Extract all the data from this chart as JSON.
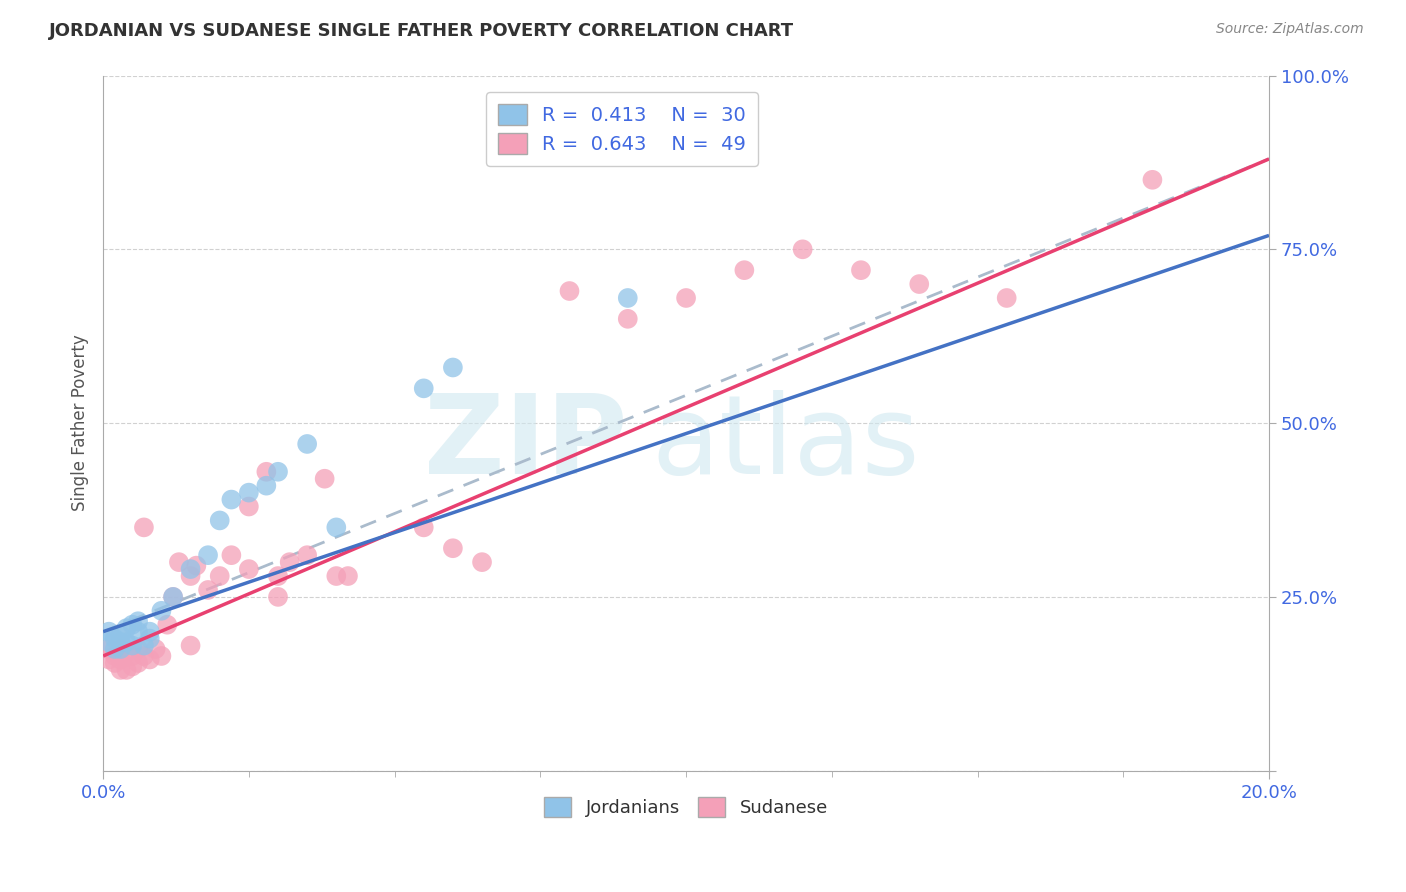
{
  "title": "JORDANIAN VS SUDANESE SINGLE FATHER POVERTY CORRELATION CHART",
  "source_text": "Source: ZipAtlas.com",
  "ylabel": "Single Father Poverty",
  "x_min": 0.0,
  "x_max": 0.2,
  "y_min": 0.0,
  "y_max": 1.0,
  "y_ticks": [
    0.0,
    0.25,
    0.5,
    0.75,
    1.0
  ],
  "y_tick_labels": [
    "",
    "25.0%",
    "50.0%",
    "75.0%",
    "100.0%"
  ],
  "legend_r1": "0.413",
  "legend_n1": "30",
  "legend_r2": "0.643",
  "legend_n2": "49",
  "jordanian_color": "#90C3E8",
  "sudanese_color": "#F4A0B8",
  "jordanian_line_color": "#4472C4",
  "sudanese_line_color": "#E84070",
  "dash_line_color": "#AABBCC",
  "background_color": "#FFFFFF",
  "grid_color": "#CCCCCC",
  "axis_label_color": "#4169E1",
  "title_color": "#333333",
  "source_color": "#888888",
  "watermark_color": "#D0E8F0",
  "jordanians_x": [
    0.001,
    0.001,
    0.002,
    0.002,
    0.003,
    0.003,
    0.003,
    0.004,
    0.004,
    0.005,
    0.005,
    0.006,
    0.006,
    0.007,
    0.008,
    0.008,
    0.01,
    0.012,
    0.015,
    0.018,
    0.02,
    0.022,
    0.025,
    0.028,
    0.03,
    0.035,
    0.04,
    0.055,
    0.06,
    0.09
  ],
  "jordanians_y": [
    0.185,
    0.2,
    0.175,
    0.19,
    0.175,
    0.185,
    0.195,
    0.185,
    0.205,
    0.21,
    0.18,
    0.2,
    0.215,
    0.18,
    0.19,
    0.2,
    0.23,
    0.25,
    0.29,
    0.31,
    0.36,
    0.39,
    0.4,
    0.41,
    0.43,
    0.47,
    0.35,
    0.55,
    0.58,
    0.68
  ],
  "sudanese_x": [
    0.001,
    0.001,
    0.002,
    0.002,
    0.003,
    0.003,
    0.003,
    0.004,
    0.004,
    0.005,
    0.005,
    0.006,
    0.006,
    0.007,
    0.007,
    0.008,
    0.009,
    0.01,
    0.011,
    0.012,
    0.013,
    0.015,
    0.015,
    0.016,
    0.018,
    0.02,
    0.022,
    0.025,
    0.025,
    0.028,
    0.03,
    0.03,
    0.032,
    0.035,
    0.038,
    0.04,
    0.042,
    0.055,
    0.06,
    0.065,
    0.08,
    0.09,
    0.1,
    0.11,
    0.12,
    0.13,
    0.14,
    0.155,
    0.18
  ],
  "sudanese_y": [
    0.16,
    0.175,
    0.155,
    0.165,
    0.145,
    0.16,
    0.175,
    0.145,
    0.17,
    0.15,
    0.165,
    0.155,
    0.175,
    0.165,
    0.35,
    0.16,
    0.175,
    0.165,
    0.21,
    0.25,
    0.3,
    0.18,
    0.28,
    0.295,
    0.26,
    0.28,
    0.31,
    0.29,
    0.38,
    0.43,
    0.25,
    0.28,
    0.3,
    0.31,
    0.42,
    0.28,
    0.28,
    0.35,
    0.32,
    0.3,
    0.69,
    0.65,
    0.68,
    0.72,
    0.75,
    0.72,
    0.7,
    0.68,
    0.85
  ],
  "jord_line_x0": 0.0,
  "jord_line_y0": 0.2,
  "jord_line_x1": 0.2,
  "jord_line_y1": 0.77,
  "sudan_line_x0": 0.0,
  "sudan_line_y0": 0.165,
  "sudan_line_x1": 0.2,
  "sudan_line_y1": 0.88,
  "dash_line_x0": 0.0,
  "dash_line_y0": 0.2,
  "dash_line_x1": 0.2,
  "dash_line_y1": 0.88
}
